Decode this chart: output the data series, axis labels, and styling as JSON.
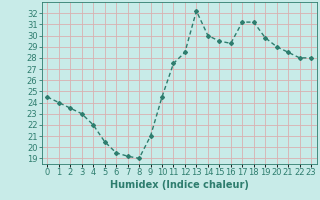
{
  "x": [
    0,
    1,
    2,
    3,
    4,
    5,
    6,
    7,
    8,
    9,
    10,
    11,
    12,
    13,
    14,
    15,
    16,
    17,
    18,
    19,
    20,
    21,
    22,
    23
  ],
  "y": [
    24.5,
    24.0,
    23.5,
    23.0,
    22.0,
    20.5,
    19.5,
    19.2,
    19.0,
    21.0,
    24.5,
    27.5,
    28.5,
    32.2,
    30.0,
    29.5,
    29.3,
    31.2,
    31.2,
    29.8,
    29.0,
    28.5,
    28.0,
    28.0
  ],
  "line_color": "#2e7d6e",
  "bg_color": "#c8ebe8",
  "grid_color": "#d9b0b0",
  "xlabel": "Humidex (Indice chaleur)",
  "ylim": [
    18.5,
    33.0
  ],
  "yticks": [
    19,
    20,
    21,
    22,
    23,
    24,
    25,
    26,
    27,
    28,
    29,
    30,
    31,
    32
  ],
  "xticks": [
    0,
    1,
    2,
    3,
    4,
    5,
    6,
    7,
    8,
    9,
    10,
    11,
    12,
    13,
    14,
    15,
    16,
    17,
    18,
    19,
    20,
    21,
    22,
    23
  ],
  "xtick_labels": [
    "0",
    "1",
    "2",
    "3",
    "4",
    "5",
    "6",
    "7",
    "8",
    "9",
    "10",
    "11",
    "12",
    "13",
    "14",
    "15",
    "16",
    "17",
    "18",
    "19",
    "20",
    "21",
    "22",
    "23"
  ],
  "marker": "D",
  "marker_size": 2.0,
  "line_width": 1.0,
  "font_size": 6,
  "xlabel_fontsize": 7
}
